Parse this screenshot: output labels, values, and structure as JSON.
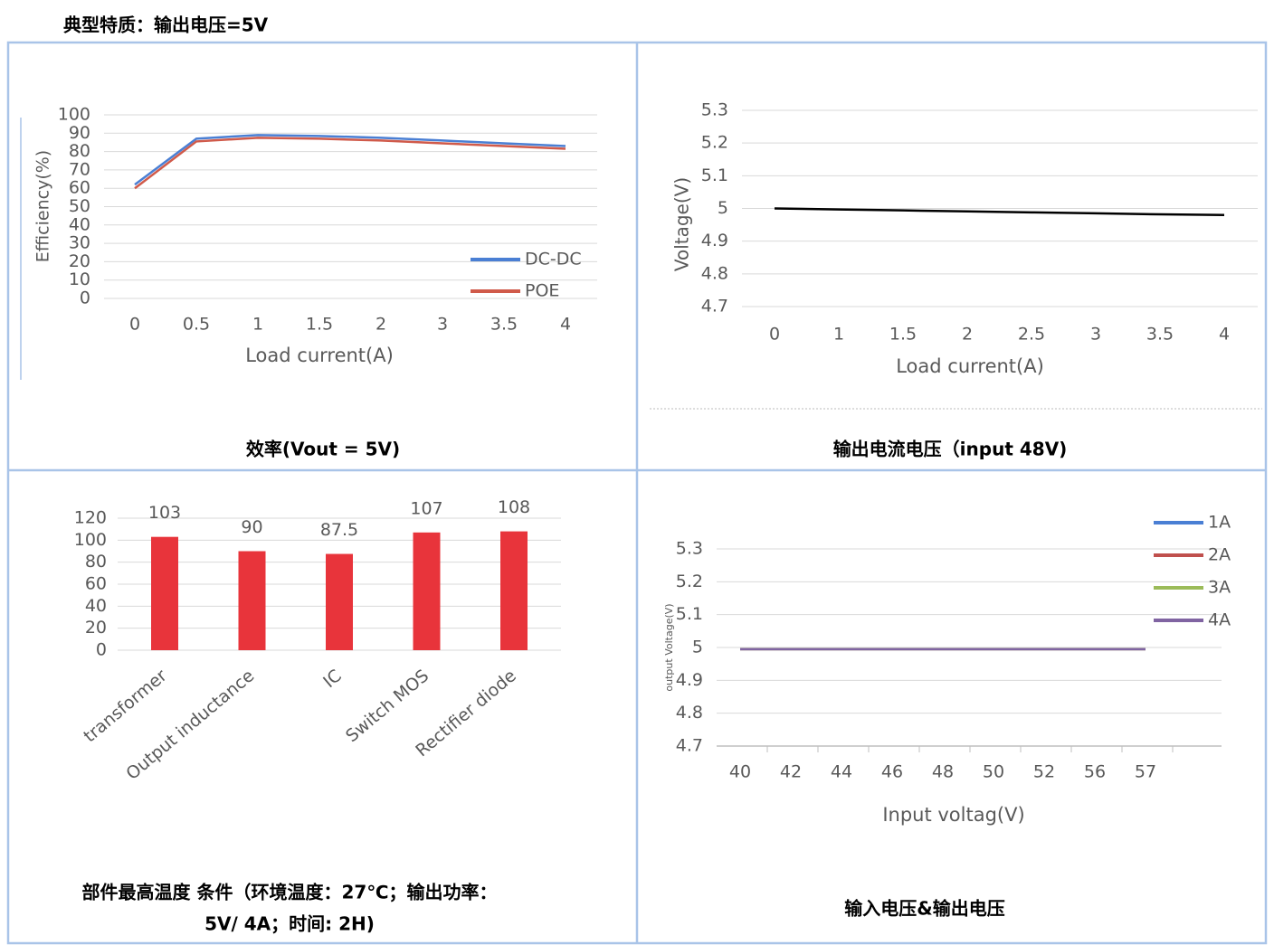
{
  "title": "典型特质：输出电压=5V",
  "chart_data": [
    {
      "type": "line",
      "caption": [
        "效率(Vout = 5V)"
      ],
      "ylabel": "Efficiency(%)",
      "xlabel": "Load current(A)",
      "categories": [
        "0",
        "0.5",
        "1",
        "1.5",
        "2",
        "3",
        "3.5",
        "4"
      ],
      "series": [
        {
          "name": "DC-DC",
          "color": "#4a7fd4",
          "values": [
            62,
            87,
            89,
            88.5,
            87.5,
            86,
            84.5,
            83
          ]
        },
        {
          "name": "POE",
          "color": "#d05a4a",
          "values": [
            60,
            85.5,
            87.5,
            87,
            86,
            84.5,
            83,
            81.5
          ]
        }
      ],
      "ylim": [
        0,
        100
      ],
      "yticks": [
        0,
        10,
        20,
        30,
        40,
        50,
        60,
        70,
        80,
        90,
        100
      ],
      "grid": true
    },
    {
      "type": "line",
      "caption": [
        "输出电流电压（input 48V)"
      ],
      "ylabel": "Voltage(V)",
      "xlabel": "Load current(A)",
      "categories": [
        "0",
        "1",
        "1.5",
        "2",
        "2.5",
        "3",
        "3.5",
        "4"
      ],
      "series": [
        {
          "color": "#000000",
          "values": [
            5.0,
            4.997,
            4.994,
            4.991,
            4.988,
            4.985,
            4.982,
            4.98
          ]
        }
      ],
      "ylim": [
        4.7,
        5.3
      ],
      "yticks": [
        4.7,
        4.8,
        4.9,
        5,
        5.1,
        5.2,
        5.3
      ],
      "grid": true
    },
    {
      "type": "bar",
      "caption": [
        "部件最高温度 条件（环境温度：27℃；输出功率：",
        "5V/ 4A；时间: 2H)"
      ],
      "categories": [
        "transformer",
        "Output inductance",
        "IC",
        "Switch MOS",
        "Rectifier diode"
      ],
      "values": [
        103,
        90,
        87.5,
        107,
        108
      ],
      "color": "#e8343b",
      "ylim": [
        0,
        120
      ],
      "yticks": [
        0,
        20,
        40,
        60,
        80,
        100,
        120
      ],
      "grid": true
    },
    {
      "type": "line",
      "caption": [
        "输入电压&输出电压"
      ],
      "ylabel": "output Voltage(V)",
      "xlabel": "Input voltag(V)",
      "categories": [
        "40",
        "42",
        "44",
        "46",
        "48",
        "50",
        "52",
        "56",
        "57"
      ],
      "series": [
        {
          "name": "1A",
          "color": "#4a7fd4",
          "values": [
            4.995,
            4.995,
            4.995,
            4.995,
            4.995,
            4.995,
            4.995,
            4.995,
            4.995
          ]
        },
        {
          "name": "2A",
          "color": "#c0504d",
          "values": [
            4.995,
            4.995,
            4.995,
            4.995,
            4.995,
            4.995,
            4.995,
            4.995,
            4.995
          ]
        },
        {
          "name": "3A",
          "color": "#9bbb59",
          "values": [
            4.995,
            4.995,
            4.995,
            4.995,
            4.995,
            4.995,
            4.995,
            4.995,
            4.995
          ]
        },
        {
          "name": "4A",
          "color": "#8064a2",
          "values": [
            4.995,
            4.995,
            4.995,
            4.995,
            4.995,
            4.995,
            4.995,
            4.995,
            4.995
          ]
        }
      ],
      "ylim": [
        4.7,
        5.3
      ],
      "yticks": [
        4.7,
        4.8,
        4.9,
        5,
        5.1,
        5.2,
        5.3
      ],
      "grid": true
    }
  ]
}
